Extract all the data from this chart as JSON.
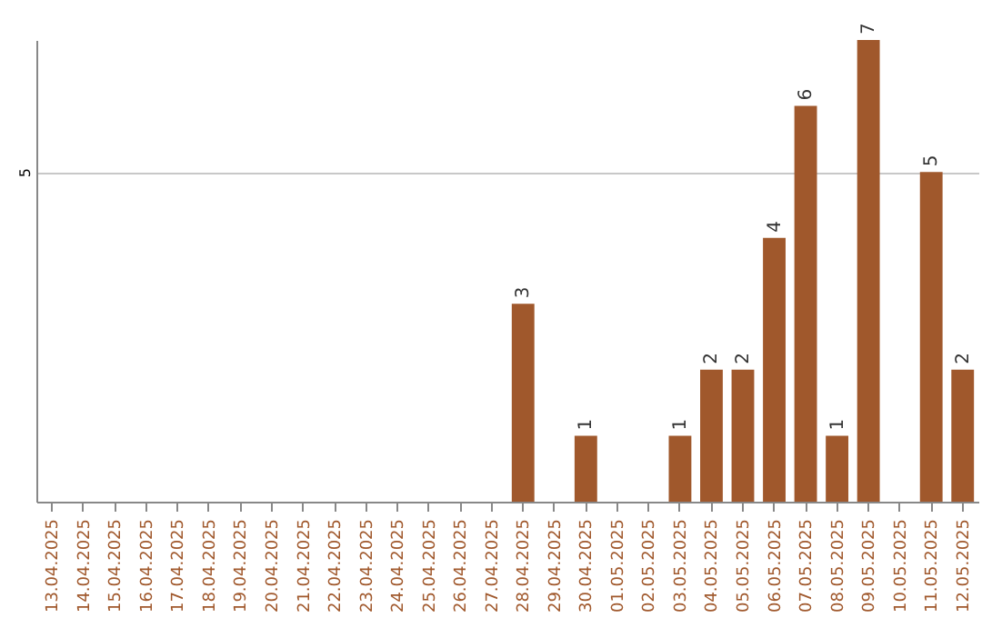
{
  "chart_data": {
    "type": "bar",
    "categories": [
      "13.04.2025",
      "14.04.2025",
      "15.04.2025",
      "16.04.2025",
      "17.04.2025",
      "18.04.2025",
      "19.04.2025",
      "20.04.2025",
      "21.04.2025",
      "22.04.2025",
      "23.04.2025",
      "24.04.2025",
      "25.04.2025",
      "26.04.2025",
      "27.04.2025",
      "28.04.2025",
      "29.04.2025",
      "30.04.2025",
      "01.05.2025",
      "02.05.2025",
      "03.05.2025",
      "04.05.2025",
      "05.05.2025",
      "06.05.2025",
      "07.05.2025",
      "08.05.2025",
      "09.05.2025",
      "10.05.2025",
      "11.05.2025",
      "12.05.2025"
    ],
    "values": [
      null,
      null,
      null,
      null,
      null,
      null,
      null,
      null,
      null,
      null,
      null,
      null,
      null,
      null,
      null,
      3,
      null,
      1,
      null,
      null,
      1,
      2,
      2,
      4,
      6,
      1,
      7,
      null,
      5,
      2
    ],
    "data_labels": true,
    "color": "#a0582c",
    "ylim": [
      0,
      7
    ],
    "yticks": [
      5
    ],
    "grid": "y"
  }
}
